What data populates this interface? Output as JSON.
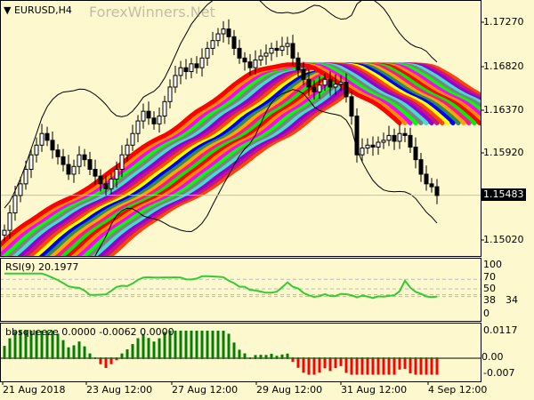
{
  "window": {
    "symbol_title": "EURUSD,H4",
    "watermark": "ForexWinners.Net"
  },
  "colors": {
    "background": "#fdf8cd",
    "bull_body": "#ffffff",
    "bear_body": "#000000",
    "rsi_line": "#32cd32",
    "hist_positive": "#008000",
    "hist_negative": "#ff0000",
    "ribbon": [
      "#ff0000",
      "#ff8c00",
      "#ff00ff",
      "#00ff00",
      "#808080",
      "#40e0d0",
      "#9400d3",
      "#c71585",
      "#ff4500",
      "#ffff00",
      "#0000ff",
      "#2e8b57",
      "#ffa500",
      "#ff1493",
      "#00ee00"
    ]
  },
  "price_axis": {
    "labels": [
      "1.17270",
      "1.16820",
      "1.16370",
      "1.15920",
      "1.15020"
    ],
    "current_price": "1.15483"
  },
  "rsi": {
    "title": "RSI(9) 20.1977",
    "axis_labels": [
      "100",
      "70",
      "50",
      "38",
      "34",
      "0"
    ]
  },
  "bbsqueeze": {
    "title": "bbsqueeze 0.0000 -0.0062 0.0000",
    "axis_labels": [
      "0.0117",
      "0.00",
      "-0.007"
    ]
  },
  "time_axis": [
    "21 Aug 2018",
    "23 Aug 12:00",
    "27 Aug 12:00",
    "29 Aug 12:00",
    "31 Aug 12:00",
    "4 Sep 12:00"
  ],
  "chart_data": {
    "type": "candlestick",
    "symbol": "EURUSD",
    "timeframe": "H4",
    "ylim": [
      1.148,
      1.175
    ],
    "closes": [
      1.1512,
      1.153,
      1.1548,
      1.156,
      1.1575,
      1.159,
      1.16,
      1.1612,
      1.1605,
      1.1595,
      1.1588,
      1.158,
      1.157,
      1.1578,
      1.159,
      1.1585,
      1.1575,
      1.1568,
      1.156,
      1.1555,
      1.1565,
      1.1575,
      1.159,
      1.16,
      1.1612,
      1.1625,
      1.1635,
      1.1628,
      1.1622,
      1.163,
      1.1645,
      1.166,
      1.1672,
      1.168,
      1.1676,
      1.1684,
      1.168,
      1.169,
      1.17,
      1.1708,
      1.1715,
      1.172,
      1.1712,
      1.17,
      1.169,
      1.1686,
      1.168,
      1.1688,
      1.1692,
      1.1695,
      1.17,
      1.1698,
      1.1702,
      1.1705,
      1.169,
      1.1678,
      1.1668,
      1.166,
      1.1655,
      1.1662,
      1.1668,
      1.166,
      1.1663,
      1.1665,
      1.165,
      1.163,
      1.159,
      1.1597,
      1.16,
      1.1598,
      1.1603,
      1.1605,
      1.161,
      1.1604,
      1.1612,
      1.161,
      1.1598,
      1.1585,
      1.157,
      1.156,
      1.1557,
      1.1548
    ],
    "rsi_period": 9,
    "rsi_levels": [
      70,
      50,
      38,
      34
    ],
    "last_rsi": 20.1977,
    "bbsqueeze_last": -0.0062
  }
}
